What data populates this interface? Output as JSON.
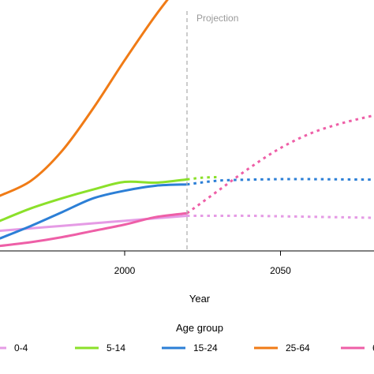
{
  "chart_data": {
    "type": "line",
    "xlabel": "Year",
    "ylabel": "",
    "xlim": [
      1960,
      2080
    ],
    "xticks": [
      2000,
      2050
    ],
    "ylim": [
      0,
      100
    ],
    "grid": false,
    "projection_start": 2020,
    "annotation": {
      "text": "Projection",
      "x": 2020
    },
    "legend": {
      "title": "Age group",
      "placement": "bottom",
      "entries": [
        "0-4",
        "5-14",
        "15-24",
        "25-64",
        "65+"
      ]
    },
    "series": [
      {
        "name": "0-4",
        "color": "#e59be5",
        "observed": [
          [
            1960,
            8
          ],
          [
            1970,
            9
          ],
          [
            1980,
            10
          ],
          [
            1990,
            11
          ],
          [
            2000,
            12
          ],
          [
            2010,
            13
          ],
          [
            2020,
            14
          ]
        ],
        "projected": [
          [
            2020,
            14
          ],
          [
            2030,
            14
          ],
          [
            2040,
            14
          ],
          [
            2050,
            13.8
          ],
          [
            2060,
            13.6
          ],
          [
            2070,
            13.4
          ],
          [
            2080,
            13.2
          ]
        ]
      },
      {
        "name": "5-14",
        "color": "#8be02a",
        "observed": [
          [
            1960,
            12
          ],
          [
            1970,
            17
          ],
          [
            1980,
            21
          ],
          [
            1990,
            24.5
          ],
          [
            2000,
            27.5
          ],
          [
            2010,
            27.2
          ],
          [
            2020,
            28.5
          ]
        ],
        "projected": [
          [
            2020,
            28.5
          ],
          [
            2025,
            29.2
          ],
          [
            2030,
            29.4
          ]
        ]
      },
      {
        "name": "15-24",
        "color": "#2c7fd6",
        "observed": [
          [
            1960,
            5
          ],
          [
            1970,
            10
          ],
          [
            1980,
            15.5
          ],
          [
            1990,
            21
          ],
          [
            2000,
            24
          ],
          [
            2010,
            26
          ],
          [
            2020,
            26.5
          ]
        ],
        "projected": [
          [
            2020,
            26.5
          ],
          [
            2030,
            28
          ],
          [
            2040,
            28.4
          ],
          [
            2050,
            28.6
          ],
          [
            2060,
            28.6
          ],
          [
            2070,
            28.5
          ],
          [
            2080,
            28.4
          ]
        ]
      },
      {
        "name": "25-64",
        "color": "#f07b16",
        "observed": [
          [
            1960,
            22
          ],
          [
            1970,
            28
          ],
          [
            1980,
            40
          ],
          [
            1990,
            57
          ],
          [
            2000,
            76
          ],
          [
            2010,
            94
          ],
          [
            2020,
            110
          ]
        ],
        "projected": [
          [
            2020,
            110
          ],
          [
            2030,
            124
          ],
          [
            2040,
            135
          ],
          [
            2050,
            142
          ],
          [
            2060,
            146
          ],
          [
            2070,
            149
          ],
          [
            2080,
            150
          ]
        ]
      },
      {
        "name": "65+",
        "color": "#ee5fa7",
        "observed": [
          [
            1960,
            2
          ],
          [
            1970,
            3.5
          ],
          [
            1980,
            5.5
          ],
          [
            1990,
            8
          ],
          [
            2000,
            10.5
          ],
          [
            2010,
            13.5
          ],
          [
            2020,
            15
          ]
        ],
        "projected": [
          [
            2020,
            15
          ],
          [
            2030,
            24
          ],
          [
            2040,
            33
          ],
          [
            2050,
            41
          ],
          [
            2060,
            47
          ],
          [
            2070,
            51
          ],
          [
            2080,
            54
          ]
        ]
      }
    ]
  }
}
